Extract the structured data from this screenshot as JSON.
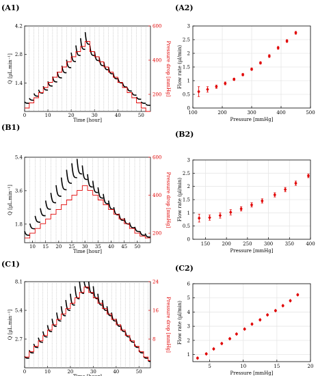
{
  "colors": {
    "red": "#e00000",
    "black": "#000000",
    "grid": "#e6e6e6",
    "trace": "#000000"
  },
  "chart_data": [
    {
      "panel": "(A1)",
      "type": "line",
      "xlabel": "Time [hour]",
      "ylabel": "Q [µL.min⁻¹]",
      "y2label": "Pressure drop [mmHg]",
      "xlim": [
        0,
        54
      ],
      "ylim": [
        0,
        4.2
      ],
      "y2lim": [
        100,
        600
      ],
      "xticks": [
        0,
        10,
        20,
        30,
        40,
        50
      ],
      "yticks": [
        1.4,
        2.8,
        4.2
      ],
      "y2ticks": [
        200,
        400,
        600
      ],
      "ytick_labels": [
        "1.4",
        "2.8",
        "4.2"
      ],
      "series": [
        {
          "role": "flow",
          "axis": "left",
          "step_times": [
            0,
            2,
            4,
            6,
            8,
            10,
            12,
            14,
            16,
            18,
            20,
            22,
            24,
            26,
            28,
            30,
            32,
            34,
            36,
            38,
            40,
            42,
            44,
            46,
            48,
            50,
            52,
            54
          ],
          "values": [
            0.4,
            0.55,
            0.75,
            0.9,
            1.05,
            1.25,
            1.45,
            1.65,
            1.9,
            2.15,
            2.45,
            2.75,
            3.05,
            3.3,
            2.75,
            2.5,
            2.25,
            2.05,
            1.85,
            1.6,
            1.4,
            1.2,
            1.0,
            0.8,
            0.6,
            0.4,
            0.3
          ]
        },
        {
          "role": "pressure",
          "axis": "right",
          "step_times": [
            0,
            2,
            4,
            6,
            8,
            10,
            12,
            14,
            16,
            18,
            20,
            22,
            24,
            26,
            28,
            30,
            32,
            34,
            36,
            38,
            40,
            42,
            44,
            46,
            48,
            50,
            52,
            54
          ],
          "values": [
            120,
            150,
            180,
            210,
            240,
            270,
            300,
            330,
            360,
            390,
            420,
            450,
            480,
            510,
            450,
            420,
            390,
            360,
            330,
            300,
            270,
            240,
            210,
            180,
            150,
            120,
            100
          ]
        }
      ]
    },
    {
      "panel": "(A2)",
      "type": "scatter",
      "xlabel": "Pressure [mmHg]",
      "ylabel": "Flow rate (µl/min)",
      "xlim": [
        100,
        500
      ],
      "ylim": [
        0,
        3
      ],
      "xticks": [
        100,
        200,
        300,
        400,
        500
      ],
      "yticks": [
        0,
        0.5,
        1,
        1.5,
        2,
        2.5,
        3
      ],
      "ytick_labels": [
        "0",
        "0.5",
        "1",
        "1.5",
        "2",
        "2.5",
        "3"
      ],
      "points": [
        {
          "x": 120,
          "y": 0.6,
          "err": 0.18
        },
        {
          "x": 150,
          "y": 0.68,
          "err": 0.1
        },
        {
          "x": 180,
          "y": 0.78,
          "err": 0.06
        },
        {
          "x": 210,
          "y": 0.9,
          "err": 0.05
        },
        {
          "x": 240,
          "y": 1.05,
          "err": 0.04
        },
        {
          "x": 270,
          "y": 1.22,
          "err": 0.04
        },
        {
          "x": 300,
          "y": 1.42,
          "err": 0.04
        },
        {
          "x": 330,
          "y": 1.65,
          "err": 0.04
        },
        {
          "x": 360,
          "y": 1.9,
          "err": 0.05
        },
        {
          "x": 390,
          "y": 2.2,
          "err": 0.05
        },
        {
          "x": 420,
          "y": 2.45,
          "err": 0.05
        },
        {
          "x": 450,
          "y": 2.75,
          "err": 0.05
        }
      ]
    },
    {
      "panel": "(B1)",
      "type": "line",
      "xlabel": "Time [hour]",
      "ylabel": "Q [µL.min⁻¹]",
      "y2label": "Pressure drop [mmHg]",
      "xlim": [
        7,
        55
      ],
      "ylim": [
        0.8,
        5.4
      ],
      "y2lim": [
        150,
        600
      ],
      "xticks": [
        10,
        15,
        20,
        25,
        30,
        35,
        40,
        45,
        50
      ],
      "yticks": [
        1.8,
        3.6,
        5.4
      ],
      "y2ticks": [
        200,
        400,
        600
      ],
      "ytick_labels": [
        "1.8",
        "3.6",
        "5.4"
      ],
      "series": [
        {
          "role": "flow",
          "axis": "left",
          "step_times": [
            7,
            9,
            11,
            13,
            15,
            17,
            19,
            21,
            23,
            25,
            27,
            29,
            31,
            33,
            35,
            37,
            39,
            41,
            43,
            45,
            47,
            49,
            51,
            53,
            55
          ],
          "values": [
            1.2,
            1.55,
            1.9,
            2.25,
            2.6,
            2.95,
            3.3,
            3.65,
            4.0,
            4.3,
            4.5,
            4.2,
            3.8,
            3.5,
            3.2,
            2.9,
            2.6,
            2.3,
            2.0,
            1.8,
            1.6,
            1.4,
            1.2,
            1.1
          ]
        },
        {
          "role": "pressure",
          "axis": "right",
          "step_times": [
            7,
            9,
            11,
            13,
            15,
            17,
            19,
            21,
            23,
            25,
            27,
            29,
            31,
            33,
            35,
            37,
            39,
            41,
            43,
            45,
            47,
            49,
            51,
            53,
            55
          ],
          "values": [
            175,
            200,
            225,
            250,
            275,
            300,
            325,
            350,
            375,
            400,
            425,
            450,
            425,
            400,
            375,
            350,
            325,
            300,
            275,
            250,
            225,
            200,
            185,
            175
          ]
        }
      ]
    },
    {
      "panel": "(B2)",
      "type": "scatter",
      "xlabel": "Pressure [mmHg]",
      "ylabel": "Flow rate (µl/min)",
      "xlim": [
        120,
        400
      ],
      "ylim": [
        0,
        3
      ],
      "xticks": [
        150,
        200,
        250,
        300,
        350,
        400
      ],
      "yticks": [
        0,
        0.5,
        1,
        1.5,
        2,
        2.5,
        3
      ],
      "ytick_labels": [
        "0",
        "0.5",
        "1",
        "1.5",
        "2",
        "2.5",
        "3"
      ],
      "points": [
        {
          "x": 135,
          "y": 0.8,
          "err": 0.15
        },
        {
          "x": 160,
          "y": 0.82,
          "err": 0.1
        },
        {
          "x": 185,
          "y": 0.9,
          "err": 0.1
        },
        {
          "x": 210,
          "y": 1.02,
          "err": 0.1
        },
        {
          "x": 235,
          "y": 1.15,
          "err": 0.08
        },
        {
          "x": 260,
          "y": 1.3,
          "err": 0.08
        },
        {
          "x": 285,
          "y": 1.45,
          "err": 0.08
        },
        {
          "x": 315,
          "y": 1.68,
          "err": 0.08
        },
        {
          "x": 340,
          "y": 1.88,
          "err": 0.08
        },
        {
          "x": 365,
          "y": 2.12,
          "err": 0.08
        },
        {
          "x": 395,
          "y": 2.4,
          "err": 0.07
        }
      ]
    },
    {
      "panel": "(C1)",
      "type": "line",
      "xlabel": "Time [hour]",
      "ylabel": "Q [µL.min⁻¹]",
      "y2label": "Pressure drop [mmHg]",
      "xlim": [
        0,
        55
      ],
      "ylim": [
        0,
        8.1
      ],
      "y2lim": [
        0,
        24
      ],
      "xticks": [
        0,
        10,
        20,
        30,
        40,
        50
      ],
      "yticks": [
        2.7,
        5.4,
        8.1
      ],
      "y2ticks": [
        8,
        16,
        24
      ],
      "ytick_labels": [
        "2.7",
        "5.4",
        "8.1"
      ],
      "series": [
        {
          "role": "flow",
          "axis": "left",
          "step_times": [
            0,
            2,
            4,
            6,
            8,
            10,
            12,
            14,
            16,
            18,
            20,
            22,
            24,
            26,
            28,
            30,
            32,
            34,
            36,
            38,
            40,
            42,
            44,
            46,
            48,
            50,
            52,
            54,
            55
          ],
          "values": [
            0.9,
            1.4,
            1.9,
            2.4,
            2.9,
            3.4,
            3.9,
            4.4,
            4.9,
            5.4,
            5.9,
            6.5,
            7.0,
            7.5,
            7.0,
            6.5,
            5.9,
            5.4,
            4.9,
            4.4,
            3.9,
            3.4,
            2.9,
            2.4,
            1.9,
            1.4,
            0.9,
            0.6
          ]
        },
        {
          "role": "pressure",
          "axis": "right",
          "step_times": [
            0,
            2,
            4,
            6,
            8,
            10,
            12,
            14,
            16,
            18,
            20,
            22,
            24,
            26,
            28,
            30,
            32,
            34,
            36,
            38,
            40,
            42,
            44,
            46,
            48,
            50,
            52,
            54,
            55
          ],
          "values": [
            3,
            4.5,
            6,
            7.5,
            9,
            10.5,
            12,
            13.5,
            15,
            16.5,
            18,
            19.5,
            21,
            22.5,
            21,
            19.5,
            18,
            16.5,
            15,
            13.5,
            12,
            10.5,
            9,
            7.5,
            6,
            4.5,
            3,
            2
          ]
        }
      ]
    },
    {
      "panel": "(C2)",
      "type": "scatter",
      "xlabel": "Pressure [mmHg]",
      "ylabel": "Flow rate (µl/min)",
      "xlim": [
        2.5,
        20
      ],
      "ylim": [
        0.5,
        6
      ],
      "xticks": [
        5,
        10,
        15,
        20
      ],
      "yticks": [
        1,
        2,
        3,
        4,
        5,
        6
      ],
      "ytick_labels": [
        "1",
        "2",
        "3",
        "4",
        "5",
        "6"
      ],
      "points": [
        {
          "x": 3.2,
          "y": 0.75,
          "err": 0.05
        },
        {
          "x": 4.5,
          "y": 1.05,
          "err": 0.05
        },
        {
          "x": 5.6,
          "y": 1.4,
          "err": 0.05
        },
        {
          "x": 6.8,
          "y": 1.78,
          "err": 0.05
        },
        {
          "x": 8.0,
          "y": 2.12,
          "err": 0.05
        },
        {
          "x": 9.0,
          "y": 2.45,
          "err": 0.05
        },
        {
          "x": 10.2,
          "y": 2.8,
          "err": 0.05
        },
        {
          "x": 11.3,
          "y": 3.15,
          "err": 0.05
        },
        {
          "x": 12.5,
          "y": 3.45,
          "err": 0.05
        },
        {
          "x": 13.6,
          "y": 3.8,
          "err": 0.05
        },
        {
          "x": 14.8,
          "y": 4.1,
          "err": 0.05
        },
        {
          "x": 15.9,
          "y": 4.45,
          "err": 0.05
        },
        {
          "x": 17.0,
          "y": 4.8,
          "err": 0.05
        },
        {
          "x": 18.1,
          "y": 5.22,
          "err": 0.05
        }
      ]
    }
  ]
}
